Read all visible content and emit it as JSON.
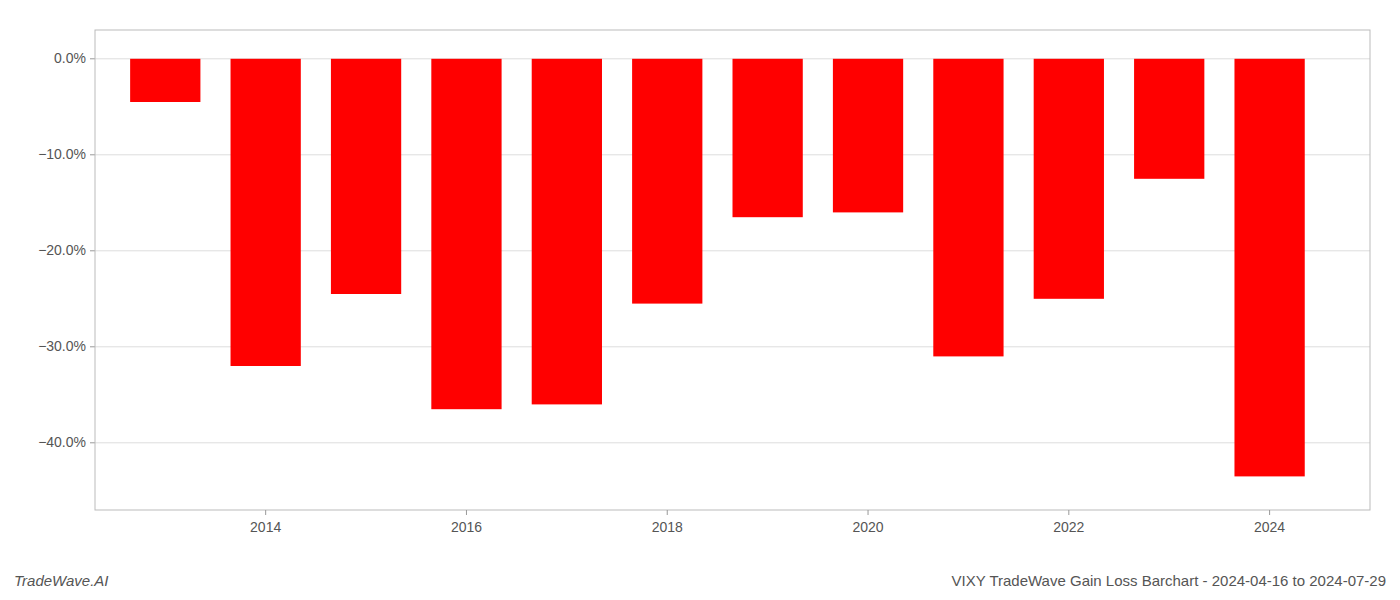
{
  "chart_data": {
    "type": "bar",
    "title": "VIXY TradeWave Gain Loss Barchart - 2024-04-16 to 2024-07-29",
    "annotations": [
      "TradeWave.AI"
    ],
    "x": [
      2013,
      2014,
      2015,
      2016,
      2017,
      2018,
      2019,
      2020,
      2021,
      2022,
      2023,
      2024
    ],
    "values": [
      -4.5,
      -32.0,
      -24.5,
      -36.5,
      -36.0,
      -25.5,
      -16.5,
      -16.0,
      -31.0,
      -25.0,
      -12.5,
      -43.5
    ],
    "color": "#ff0000",
    "xlim": [
      2012.3,
      2025.0
    ],
    "xticks": [
      2014,
      2016,
      2018,
      2020,
      2022,
      2024
    ],
    "ylim": [
      -47,
      3
    ],
    "yticks": [
      {
        "value": 0,
        "label": "0.0%"
      },
      {
        "value": -10,
        "label": "−10.0%"
      },
      {
        "value": -20,
        "label": "−20.0%"
      },
      {
        "value": -30,
        "label": "−30.0%"
      },
      {
        "value": -40,
        "label": "−40.0%"
      }
    ],
    "grid": true
  }
}
